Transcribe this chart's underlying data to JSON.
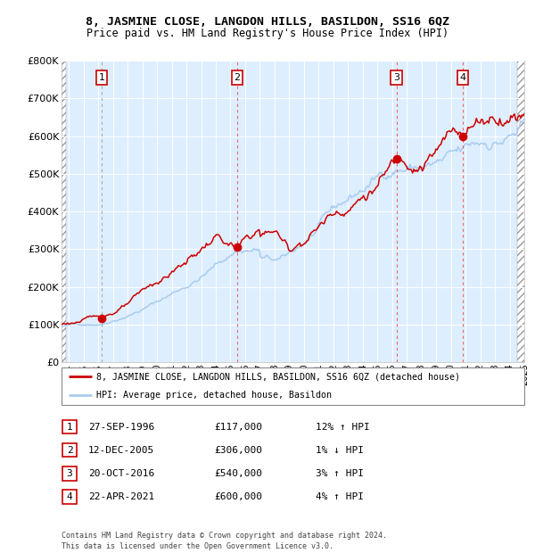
{
  "title1": "8, JASMINE CLOSE, LANGDON HILLS, BASILDON, SS16 6QZ",
  "title2": "Price paid vs. HM Land Registry's House Price Index (HPI)",
  "legend_line1": "8, JASMINE CLOSE, LANGDON HILLS, BASILDON, SS16 6QZ (detached house)",
  "legend_line2": "HPI: Average price, detached house, Basildon",
  "footer": "Contains HM Land Registry data © Crown copyright and database right 2024.\nThis data is licensed under the Open Government Licence v3.0.",
  "sale_points": [
    {
      "label": "1",
      "date": "27-SEP-1996",
      "price": 117000,
      "hpi_pct": "12% ↑ HPI",
      "x_year": 1996.74
    },
    {
      "label": "2",
      "date": "12-DEC-2005",
      "price": 306000,
      "hpi_pct": "1% ↓ HPI",
      "x_year": 2005.95
    },
    {
      "label": "3",
      "date": "20-OCT-2016",
      "price": 540000,
      "hpi_pct": "3% ↑ HPI",
      "x_year": 2016.8
    },
    {
      "label": "4",
      "date": "22-APR-2021",
      "price": 600000,
      "hpi_pct": "4% ↑ HPI",
      "x_year": 2021.31
    }
  ],
  "red_line_color": "#cc0000",
  "blue_line_color": "#aaccee",
  "sale_dot_color": "#cc0000",
  "vline_color_sale": "#ee6666",
  "vline_color_1": "#aaaaaa",
  "bg_chart": "#ddeeff",
  "ylim": [
    0,
    800000
  ],
  "xlim_start": 1994.0,
  "xlim_end": 2025.5,
  "ytick_values": [
    0,
    100000,
    200000,
    300000,
    400000,
    500000,
    600000,
    700000,
    800000
  ],
  "ytick_labels": [
    "£0",
    "£100K",
    "£200K",
    "£300K",
    "£400K",
    "£500K",
    "£600K",
    "£700K",
    "£800K"
  ]
}
